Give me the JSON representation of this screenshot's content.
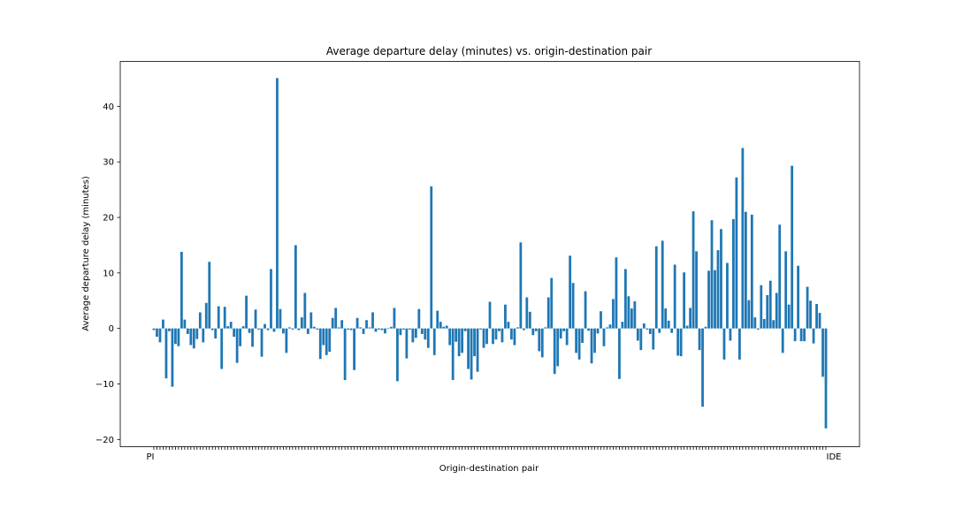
{
  "chart_data": {
    "type": "bar",
    "title": "Average departure delay (minutes) vs. origin-destination pair",
    "xlabel": "Origin-destination pair",
    "ylabel": "Average departure delay (minutes)",
    "ylim": [
      -21.3,
      48.1
    ],
    "yticks": [
      -20,
      -10,
      0,
      10,
      20,
      30,
      40
    ],
    "ytick_labels": [
      "−20",
      "−10",
      "0",
      "10",
      "20",
      "30",
      "40"
    ],
    "grid": false,
    "legend": "none",
    "bar_color": "#1f77b4",
    "first_tick_label": "PI",
    "last_tick_label": "IDE",
    "values": [
      -0.3,
      -1.5,
      -2.5,
      1.6,
      -9.0,
      -0.5,
      -10.5,
      -2.8,
      -3.2,
      13.8,
      1.6,
      -1.0,
      -3.0,
      -3.6,
      -1.9,
      2.9,
      -2.5,
      4.6,
      12.0,
      -0.3,
      -1.8,
      4.0,
      -7.3,
      3.9,
      0.4,
      1.2,
      -1.5,
      -6.2,
      -3.2,
      0.4,
      5.9,
      -0.8,
      -3.3,
      3.4,
      -0.2,
      -5.1,
      0.8,
      -0.3,
      10.7,
      -0.6,
      45.1,
      3.5,
      -0.9,
      -4.4,
      0.2,
      -0.2,
      15.0,
      -0.3,
      2.0,
      6.4,
      -1.0,
      2.9,
      0.3,
      -0.2,
      -5.5,
      -3.0,
      -4.8,
      -4.2,
      1.9,
      3.7,
      0.2,
      1.5,
      -9.3,
      -0.2,
      -0.3,
      -7.5,
      1.9,
      0.2,
      -1.0,
      1.5,
      0.2,
      2.9,
      -0.6,
      -0.2,
      -0.3,
      -0.9,
      0.1,
      0.3,
      3.7,
      -9.5,
      -1.2,
      -0.2,
      -5.4,
      -0.2,
      -2.5,
      -1.7,
      3.5,
      -1.0,
      -2.0,
      -3.5,
      25.6,
      -4.8,
      3.2,
      1.2,
      0.3,
      0.5,
      -3.0,
      -9.3,
      -2.4,
      -5.0,
      -4.4,
      -0.5,
      -7.3,
      -9.2,
      -5.0,
      -7.8,
      -0.2,
      -3.5,
      -2.8,
      4.8,
      -2.8,
      -2.0,
      -0.5,
      -2.5,
      4.3,
      1.2,
      -2.0,
      -3.0,
      0.2,
      15.5,
      -0.3,
      5.6,
      3.0,
      -1.2,
      -0.5,
      -4.1,
      -5.2,
      0.2,
      5.6,
      9.1,
      -8.2,
      -6.8,
      -1.8,
      -0.5,
      -3.0,
      13.1,
      8.2,
      -4.4,
      -5.6,
      -2.6,
      6.7,
      -0.4,
      -6.3,
      -4.4,
      -0.9,
      3.1,
      -3.2,
      0.2,
      0.7,
      5.3,
      12.8,
      -9.1,
      1.2,
      10.7,
      5.8,
      3.6,
      4.9,
      -2.2,
      -3.9,
      0.9,
      -0.2,
      -1.0,
      -3.8,
      14.8,
      -0.8,
      15.8,
      3.6,
      1.4,
      -0.8,
      11.5,
      -4.9,
      -5.0,
      10.1,
      0.5,
      3.7,
      21.1,
      13.9,
      -3.9,
      -14.1,
      0.3,
      10.4,
      19.5,
      10.5,
      14.1,
      17.9,
      -5.6,
      11.8,
      -2.2,
      19.7,
      27.2,
      -5.6,
      32.5,
      21.0,
      5.1,
      20.5,
      2.0,
      -0.2,
      7.8,
      1.7,
      6.0,
      8.6,
      1.5,
      6.4,
      18.7,
      -4.4,
      13.9,
      4.3,
      29.3,
      -2.3,
      11.3,
      -2.3,
      -2.3,
      7.5,
      5.0,
      -2.7,
      4.4,
      2.8,
      -8.7,
      -18.0
    ]
  }
}
